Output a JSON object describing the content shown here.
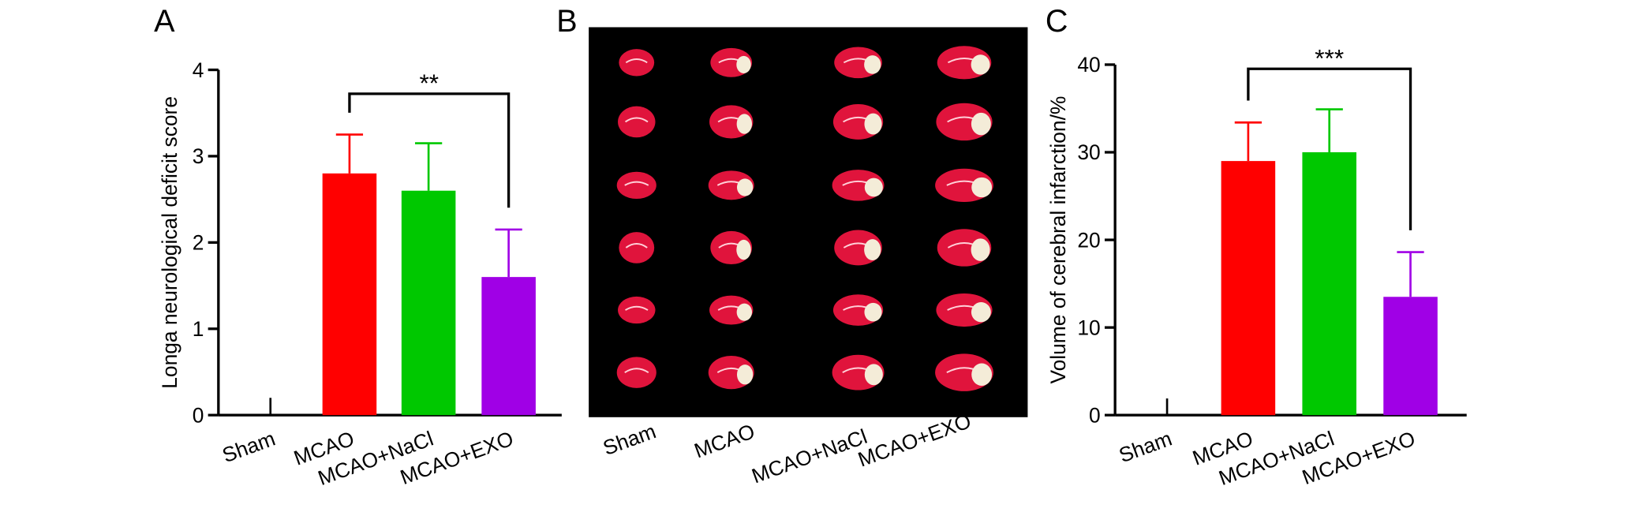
{
  "panel_labels": [
    "A",
    "B",
    "C"
  ],
  "chart_data": [
    {
      "type": "bar",
      "y_label": "Longa neurological deficit score",
      "categories": [
        "Sham",
        "MCAO",
        "MCAO+NaCl",
        "MCAO+EXO"
      ],
      "series": [
        {
          "values": [
            0,
            2.8,
            2.6,
            1.6
          ],
          "errors": [
            0.2,
            0.45,
            0.55,
            0.55
          ],
          "colors": [
            "#000000",
            "#ff0000",
            "#00c800",
            "#a000e6"
          ]
        }
      ],
      "ylim": [
        0,
        4
      ],
      "yticks": [
        0,
        1,
        2,
        3,
        4
      ],
      "annotations": [
        {
          "text": "**",
          "from": 1,
          "to": 3
        }
      ]
    },
    {
      "type": "bar",
      "y_label": "Volume of cerebral infarction/%",
      "categories": [
        "Sham",
        "MCAO",
        "MCAO+NaCl",
        "MCAO+EXO"
      ],
      "series": [
        {
          "values": [
            0,
            29,
            30,
            13.5
          ],
          "errors": [
            1.9,
            4.4,
            4.9,
            5.1
          ],
          "colors": [
            "#000000",
            "#ff0000",
            "#00c800",
            "#a000e6"
          ]
        }
      ],
      "ylim": [
        0,
        40
      ],
      "yticks": [
        0,
        10,
        20,
        30,
        40
      ],
      "annotations": [
        {
          "text": "***",
          "from": 1,
          "to": 3
        }
      ]
    }
  ],
  "image_panel": {
    "labels": [
      "Sham",
      "MCAO",
      "MCAO+NaCl",
      "MCAO+EXO"
    ]
  }
}
